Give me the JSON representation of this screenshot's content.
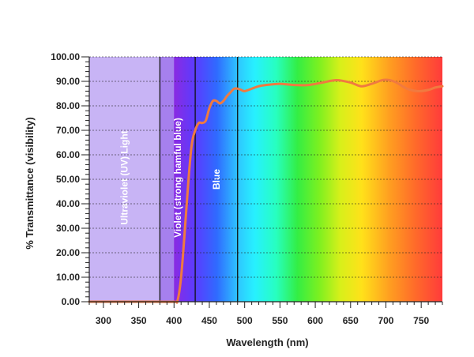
{
  "chart_data": {
    "type": "line",
    "title": "",
    "xlabel": "Wavelength (nm)",
    "ylabel": "% Transmittance (visibility)",
    "xlim": [
      280,
      780
    ],
    "ylim": [
      0,
      100
    ],
    "x_ticks": [
      300,
      350,
      400,
      450,
      500,
      550,
      600,
      650,
      700,
      750
    ],
    "y_ticks": [
      "0.00",
      "10.00",
      "20.00",
      "30.00",
      "40.00",
      "50.00",
      "60.00",
      "70.00",
      "80.00",
      "90.00",
      "100.00"
    ],
    "grid": "horizontal dotted",
    "regions": [
      {
        "label": "Ultraviolet (UV) Light",
        "from": 280,
        "to": 380
      },
      {
        "label": "Violet  (strong hamful blue)",
        "from": 380,
        "to": 430
      },
      {
        "label": "Blue",
        "from": 430,
        "to": 490
      }
    ],
    "series": [
      {
        "color": "#f07a40",
        "points": [
          [
            280,
            0
          ],
          [
            370,
            0
          ],
          [
            400,
            0
          ],
          [
            405,
            0.5
          ],
          [
            410,
            10
          ],
          [
            415,
            28
          ],
          [
            420,
            48
          ],
          [
            425,
            64
          ],
          [
            430,
            70
          ],
          [
            435,
            73
          ],
          [
            440,
            73
          ],
          [
            445,
            74
          ],
          [
            450,
            79
          ],
          [
            455,
            82
          ],
          [
            460,
            82
          ],
          [
            465,
            81
          ],
          [
            470,
            82
          ],
          [
            475,
            84
          ],
          [
            480,
            85.5
          ],
          [
            485,
            87
          ],
          [
            490,
            87
          ],
          [
            495,
            86.5
          ],
          [
            500,
            86
          ],
          [
            510,
            87
          ],
          [
            520,
            88
          ],
          [
            530,
            88.5
          ],
          [
            550,
            89
          ],
          [
            570,
            88.5
          ],
          [
            590,
            88.5
          ],
          [
            610,
            89.5
          ],
          [
            630,
            90.5
          ],
          [
            650,
            89.5
          ],
          [
            665,
            88
          ],
          [
            680,
            89
          ],
          [
            695,
            90.5
          ],
          [
            705,
            90.5
          ],
          [
            715,
            89.5
          ],
          [
            730,
            87
          ],
          [
            745,
            86
          ],
          [
            760,
            86.5
          ],
          [
            770,
            87.5
          ],
          [
            780,
            88
          ]
        ]
      }
    ]
  }
}
